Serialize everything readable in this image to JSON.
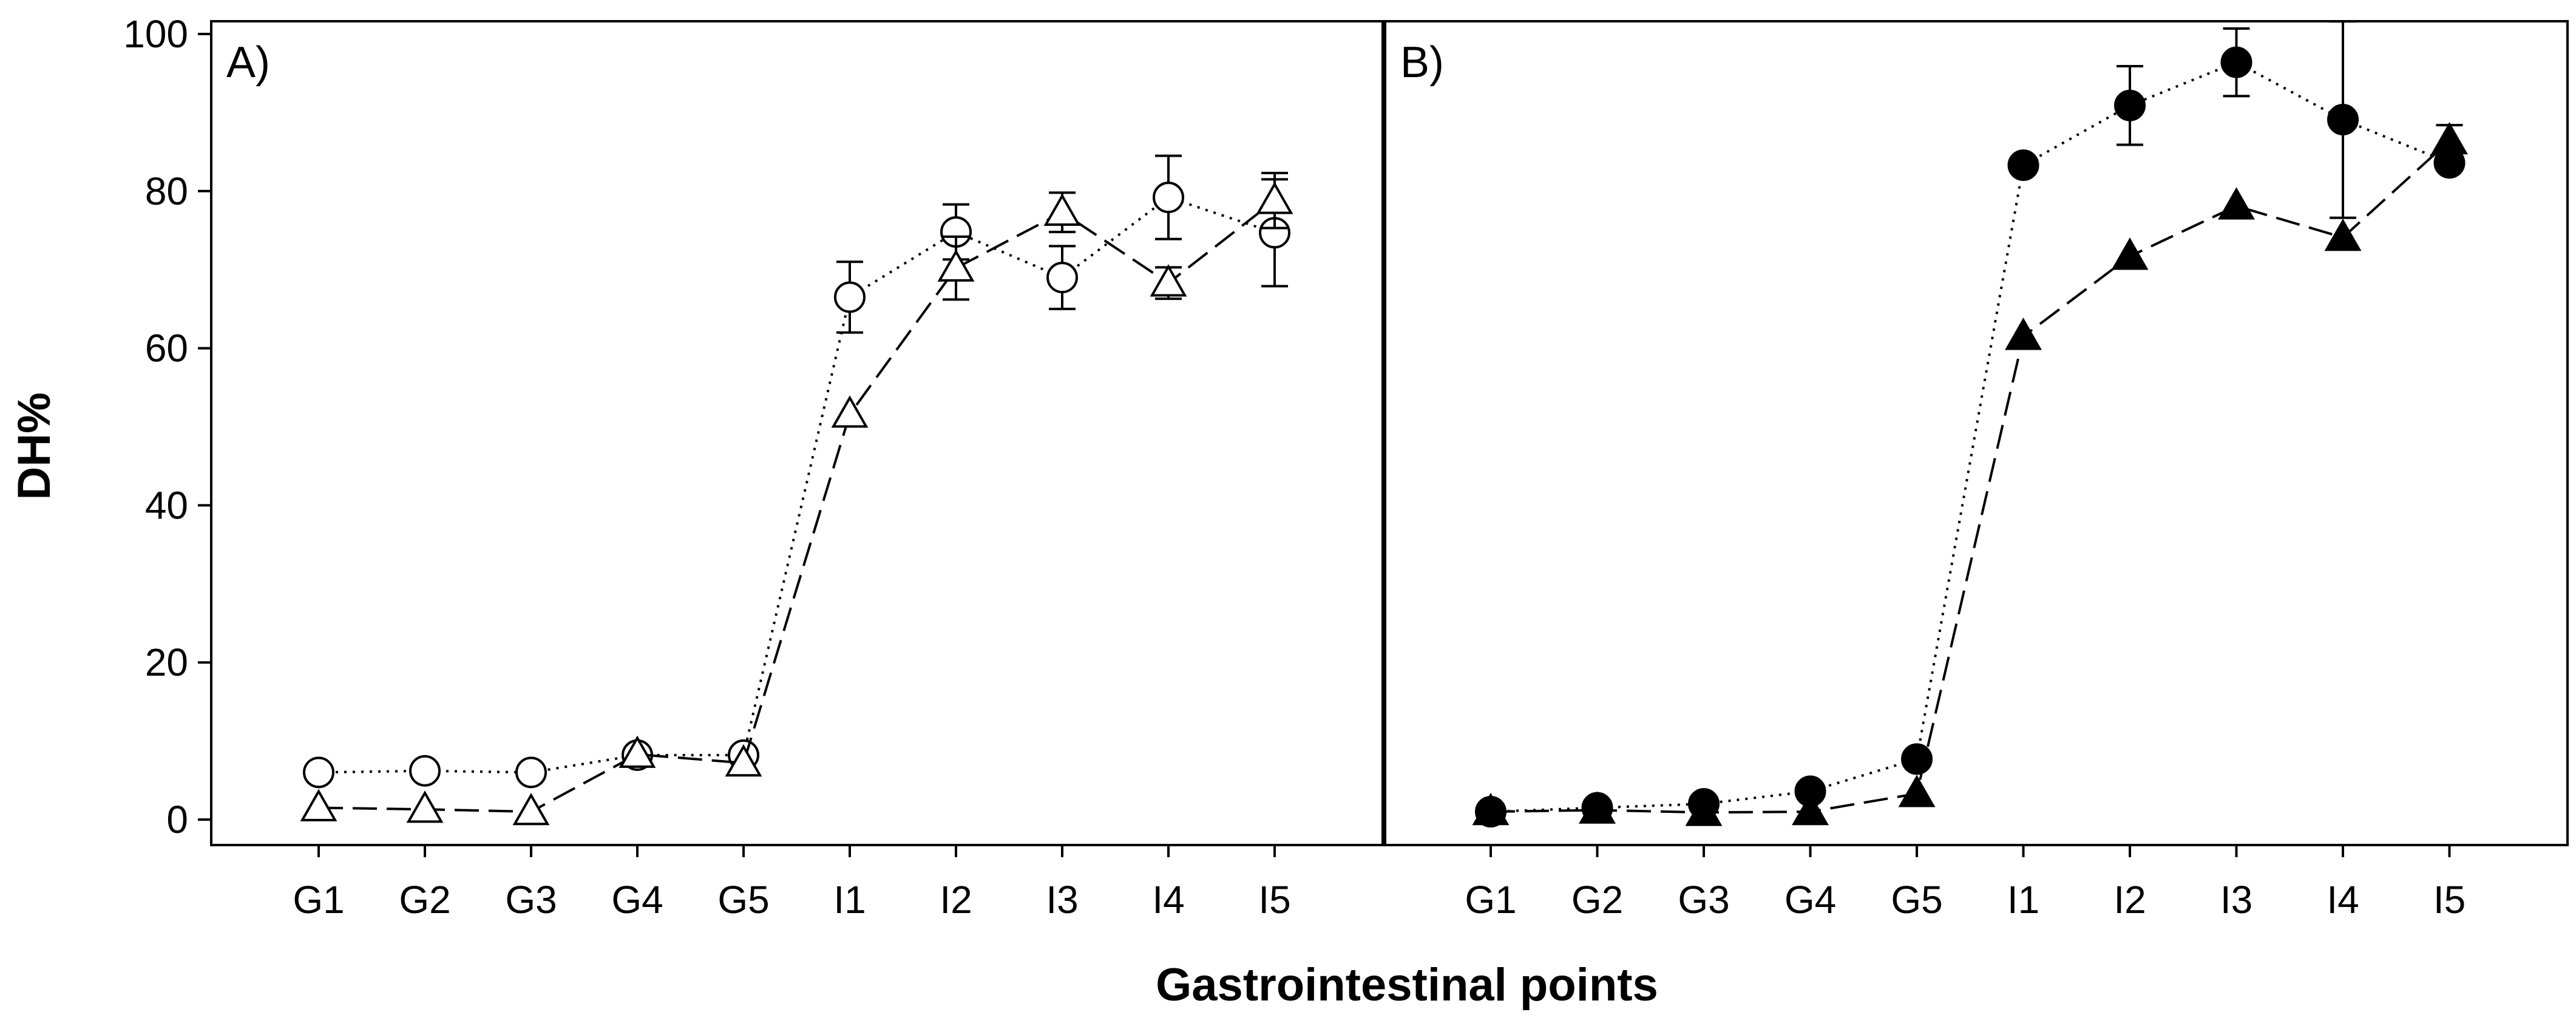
{
  "chart_data": {
    "type": "line",
    "ylabel": "DH%",
    "xlabel": "Gastrointestinal points",
    "ylim": [
      0,
      100
    ],
    "yticks": [
      0,
      20,
      40,
      60,
      80,
      100
    ],
    "categories": [
      "G1",
      "G2",
      "G3",
      "G4",
      "G5",
      "I1",
      "I2",
      "I3",
      "I4",
      "I5"
    ],
    "panels": [
      {
        "label": "A)",
        "series": [
          {
            "name": "circles-open",
            "marker": "circle",
            "filled": false,
            "line": "dotted",
            "values": [
              6,
              6.2,
              6,
              8.2,
              8.2,
              66.5,
              74.8,
              69,
              79.2,
              74.7
            ],
            "errors": [
              0,
              0,
              0,
              0,
              0,
              4.5,
              3.5,
              4,
              5.3,
              6.8
            ]
          },
          {
            "name": "triangles-open",
            "marker": "triangle",
            "filled": false,
            "line": "dashed",
            "values": [
              1.5,
              1.3,
              1,
              8.3,
              7.2,
              51.6,
              70.2,
              77.3,
              68.3,
              78.8
            ],
            "errors": [
              0,
              0,
              0,
              0,
              0,
              0,
              4,
              2.5,
              2,
              3.5
            ]
          }
        ]
      },
      {
        "label": "B)",
        "series": [
          {
            "name": "circles-filled",
            "marker": "circle",
            "filled": true,
            "line": "dotted",
            "values": [
              1,
              1.5,
              2,
              3.6,
              7.7,
              83.3,
              90.9,
              96.4,
              89.1,
              83.6
            ],
            "errors": [
              0,
              0,
              0,
              0,
              0,
              0,
              5,
              4.3,
              12.5,
              0
            ]
          },
          {
            "name": "triangles-filled",
            "marker": "triangle",
            "filled": true,
            "line": "dashed",
            "values": [
              1,
              1.2,
              0.9,
              1,
              3.3,
              61.5,
              71.7,
              78.1,
              74.1,
              86.4
            ],
            "errors": [
              0,
              0,
              0,
              0,
              0,
              0,
              0,
              0,
              0,
              2
            ]
          }
        ]
      }
    ]
  }
}
